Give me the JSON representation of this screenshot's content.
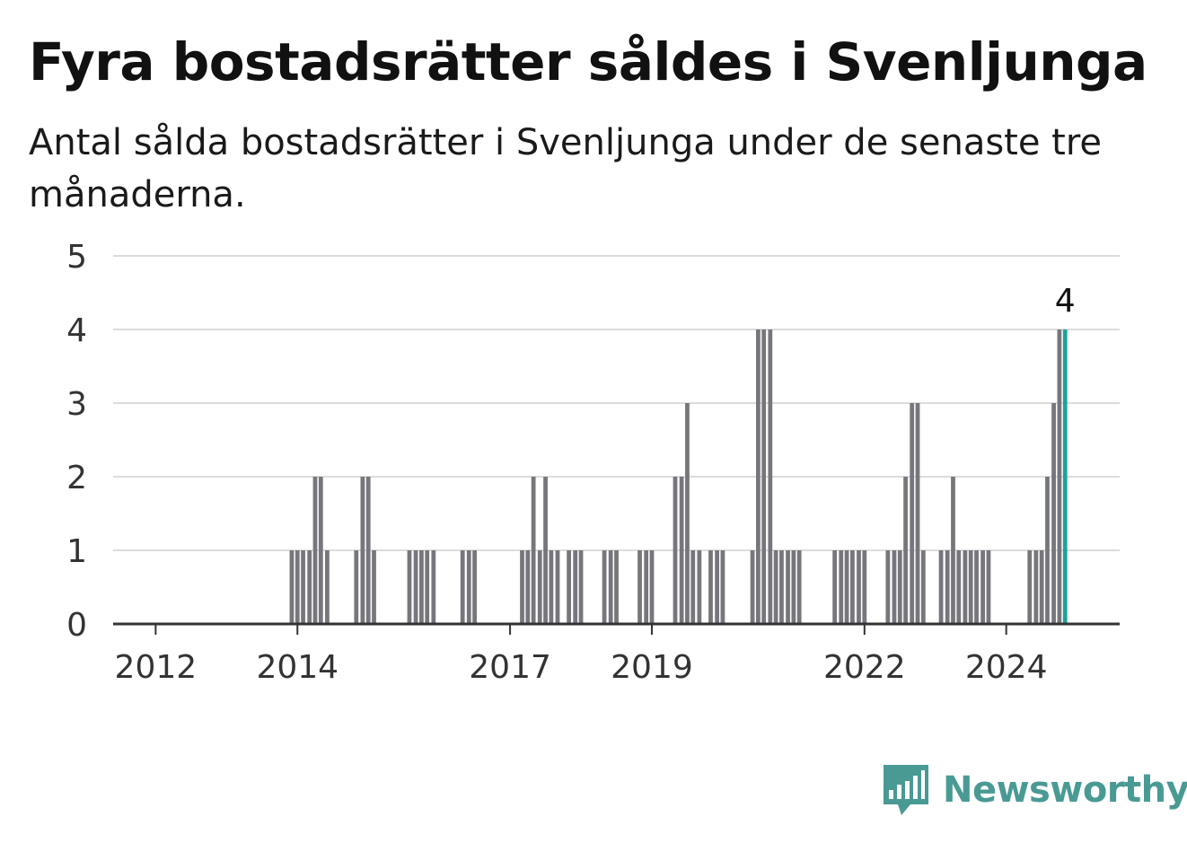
{
  "header": {
    "title": "Fyra bostadsrätter såldes i Svenljunga",
    "subtitle": "Antal sålda bostadsrätter i Svenljunga under de senaste tre månaderna."
  },
  "brand": {
    "name": "Newsworthy",
    "color": "#4a9a94",
    "icon": "newsworthy-chart-logo-icon"
  },
  "colors": {
    "bar": "#76767c",
    "highlight": "#1aa39a",
    "grid": "#dcdcdc",
    "axis": "#333333"
  },
  "chart_data": {
    "type": "bar",
    "xlabel": "",
    "ylabel": "",
    "ylim": [
      0,
      5
    ],
    "yticks": [
      "0",
      "1",
      "2",
      "3",
      "4",
      "5"
    ],
    "xticks": [
      {
        "label": "2012",
        "x": 2012.0
      },
      {
        "label": "2014",
        "x": 2014.0
      },
      {
        "label": "2017",
        "x": 2017.0
      },
      {
        "label": "2019",
        "x": 2019.0
      },
      {
        "label": "2022",
        "x": 2022.0
      },
      {
        "label": "2024",
        "x": 2024.0
      }
    ],
    "x_range": [
      2011.4,
      2025.6
    ],
    "bar_width_years": 0.0833,
    "series": [
      {
        "x": [
          2013.92,
          2014.0,
          2014.08,
          2014.17,
          2014.25,
          2014.33,
          2014.42,
          2014.83,
          2014.92,
          2015.0,
          2015.08,
          2015.58,
          2015.67,
          2015.75,
          2015.83,
          2015.92,
          2016.33,
          2016.42,
          2016.5,
          2017.17,
          2017.25,
          2017.33,
          2017.42,
          2017.5,
          2017.58,
          2017.67,
          2017.83,
          2017.92,
          2018.0,
          2018.33,
          2018.42,
          2018.5,
          2018.83,
          2018.92,
          2019.0,
          2019.33,
          2019.42,
          2019.5,
          2019.58,
          2019.67,
          2019.83,
          2019.92,
          2020.0,
          2020.42,
          2020.5,
          2020.58,
          2020.67,
          2020.75,
          2020.83,
          2020.92,
          2021.0,
          2021.08,
          2021.58,
          2021.67,
          2021.75,
          2021.83,
          2021.92,
          2022.0,
          2022.33,
          2022.42,
          2022.5,
          2022.58,
          2022.67,
          2022.75,
          2022.83,
          2023.08,
          2023.17,
          2023.25,
          2023.33,
          2023.42,
          2023.5,
          2023.58,
          2023.67,
          2023.75,
          2024.33,
          2024.42,
          2024.5,
          2024.58,
          2024.67,
          2024.75,
          2024.83
        ],
        "values": [
          1,
          1,
          1,
          1,
          2,
          2,
          1,
          1,
          2,
          2,
          1,
          1,
          1,
          1,
          1,
          1,
          1,
          1,
          1,
          1,
          1,
          2,
          1,
          2,
          1,
          1,
          1,
          1,
          1,
          1,
          1,
          1,
          1,
          1,
          1,
          2,
          2,
          3,
          1,
          1,
          1,
          1,
          1,
          1,
          4,
          4,
          4,
          1,
          1,
          1,
          1,
          1,
          1,
          1,
          1,
          1,
          1,
          1,
          1,
          1,
          1,
          2,
          3,
          3,
          1,
          1,
          1,
          2,
          1,
          1,
          1,
          1,
          1,
          1,
          1,
          1,
          1,
          2,
          3,
          4,
          4
        ]
      }
    ],
    "highlight_index": 80,
    "annotation": {
      "text": "4"
    }
  }
}
